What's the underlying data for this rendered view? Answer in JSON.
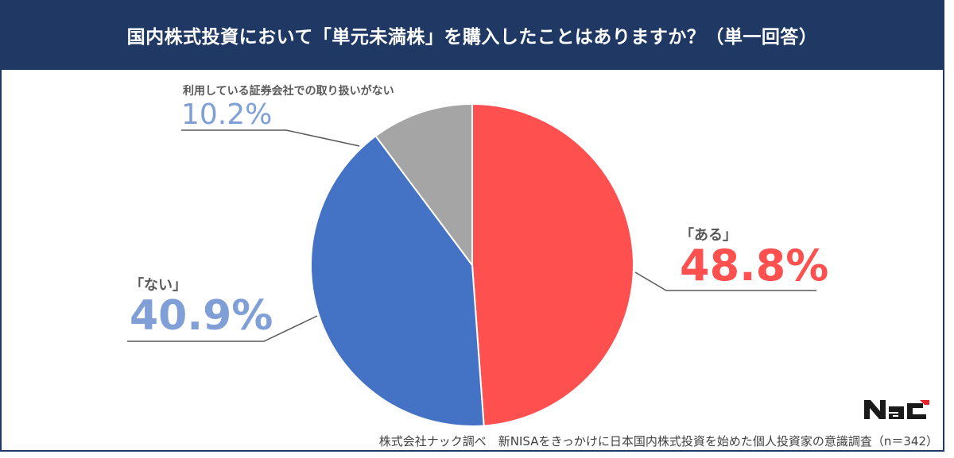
{
  "header": {
    "title": "国内株式投資において「単元未満株」を購入したことはありますか？（単一回答）"
  },
  "labels": {
    "aru": {
      "name": "「ある」",
      "pct": "48.8%"
    },
    "nai": {
      "name": "「ない」",
      "pct": "40.9%"
    },
    "other": {
      "name": "利用している証券会社での取り扱いがない",
      "pct": "10.2%"
    }
  },
  "colors": {
    "header_bg": "#1f3864",
    "aru": "#ff5050",
    "nai": "#4472c4",
    "other": "#a5a5a5",
    "nai_label": "#7f9fd6",
    "other_label": "#7f9fd6",
    "aru_label": "#ff5050"
  },
  "logo": {
    "text": "NaC"
  },
  "footer": {
    "source": "株式会社ナック調べ　新NISAをきっかけに日本国内株式投資を始めた個人投資家の意識調査（n＝342）"
  },
  "chart_data": {
    "type": "pie",
    "title": "国内株式投資において「単元未満株」を購入したことはありますか？（単一回答）",
    "categories": [
      "ある",
      "ない",
      "利用している証券会社での取り扱いがない"
    ],
    "values": [
      48.8,
      40.9,
      10.2
    ],
    "unit": "%",
    "colors": [
      "#ff5050",
      "#4472c4",
      "#a5a5a5"
    ],
    "start_angle": "12 o'clock, clockwise",
    "n": 342,
    "legend": "none (data labels with leader lines)"
  }
}
